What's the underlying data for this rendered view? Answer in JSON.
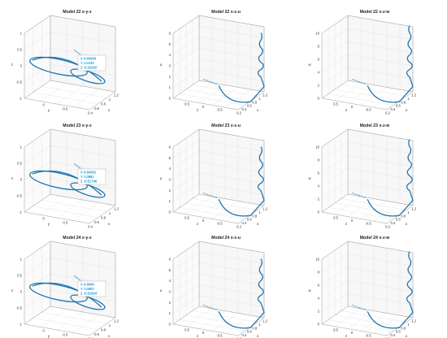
{
  "chart_data": [
    {
      "type": "line3d",
      "title": "Model 22 x-y-z",
      "xlabel": "x",
      "ylabel": "y",
      "zlabel": "z",
      "x_ticks": [
        "0.4",
        "0.6",
        "0.8",
        "1",
        "1.2"
      ],
      "y_ticks": [
        "0",
        "0.5"
      ],
      "z_ticks": [
        "1",
        "0.5",
        "0",
        "-0.5",
        "-1"
      ],
      "datatip": {
        "x": "X 0.60909",
        "y": "Y 1.0132",
        "z": "Z -0.51932"
      },
      "series_color": "#1f77b4"
    },
    {
      "type": "line3d",
      "title": "Model 22 x-z-u",
      "xlabel": "x",
      "ylabel": "z",
      "zlabel": "u",
      "x_ticks": [
        "0.2",
        "0.4",
        "0.6",
        "0.8",
        "1",
        "1.2"
      ],
      "y_ticks": [
        "0.5",
        "0",
        "-0.5"
      ],
      "z_ticks": [
        "6",
        "5",
        "4",
        "3",
        "2",
        "1",
        "0"
      ],
      "series_color": "#1f77b4"
    },
    {
      "type": "line3d",
      "title": "Model 22 x-z-w",
      "xlabel": "x",
      "ylabel": "z",
      "zlabel": "w",
      "x_ticks": [
        "0.2",
        "0.4",
        "0.6",
        "0.8",
        "1",
        "1.2"
      ],
      "y_ticks": [
        "0.5",
        "0",
        "-0.5"
      ],
      "z_ticks": [
        "10",
        "8",
        "6",
        "4",
        "2",
        "0"
      ],
      "series_color": "#1f77b4"
    },
    {
      "type": "line3d",
      "title": "Model 23 x-y-z",
      "xlabel": "x",
      "ylabel": "y",
      "zlabel": "z",
      "x_ticks": [
        "0.4",
        "0.6",
        "0.8",
        "1",
        "1.2"
      ],
      "y_ticks": [
        "0",
        "0.5"
      ],
      "z_ticks": [
        "1",
        "0.5",
        "0",
        "-0.5",
        "-1"
      ],
      "datatip": {
        "x": "X 0.60952",
        "y": "Y 1.0861",
        "z": "Z -0.51796"
      },
      "series_color": "#1f77b4"
    },
    {
      "type": "line3d",
      "title": "Model 23 x-z-u",
      "xlabel": "x",
      "ylabel": "z",
      "zlabel": "u",
      "x_ticks": [
        "0.2",
        "0.4",
        "0.6",
        "0.8",
        "1",
        "1.2"
      ],
      "y_ticks": [
        "0.5",
        "0",
        "-0.5"
      ],
      "z_ticks": [
        "6",
        "5",
        "4",
        "3",
        "2",
        "1",
        "0"
      ],
      "series_color": "#1f77b4"
    },
    {
      "type": "line3d",
      "title": "Model 23 x-z-w",
      "xlabel": "x",
      "ylabel": "z",
      "zlabel": "w",
      "x_ticks": [
        "0.2",
        "0.4",
        "0.6",
        "0.8",
        "1",
        "1.2"
      ],
      "y_ticks": [
        "0.5",
        "0",
        "-0.5"
      ],
      "z_ticks": [
        "10",
        "8",
        "6",
        "4",
        "2",
        "0"
      ],
      "series_color": "#1f77b4"
    },
    {
      "type": "line3d",
      "title": "Model 24 x-y-z",
      "xlabel": "x",
      "ylabel": "y",
      "zlabel": "z",
      "x_ticks": [
        "0.4",
        "0.6",
        "0.8",
        "1",
        "1.2"
      ],
      "y_ticks": [
        "0",
        "0.5"
      ],
      "z_ticks": [
        "1",
        "0.5",
        "0",
        "-0.5",
        "-1"
      ],
      "datatip": {
        "x": "X 0.6094",
        "y": "Y 1.0602",
        "z": "Z -0.51824"
      },
      "series_color": "#1f77b4"
    },
    {
      "type": "line3d",
      "title": "Model 24 x-z-u",
      "xlabel": "x",
      "ylabel": "z",
      "zlabel": "u",
      "x_ticks": [
        "0.2",
        "0.4",
        "0.6",
        "0.8",
        "1",
        "1.2"
      ],
      "y_ticks": [
        "0.5",
        "0",
        "-0.5"
      ],
      "z_ticks": [
        "6",
        "5",
        "4",
        "3",
        "2",
        "1",
        "0"
      ],
      "series_color": "#1f77b4"
    },
    {
      "type": "line3d",
      "title": "Model 24 x-z-w",
      "xlabel": "x",
      "ylabel": "z",
      "zlabel": "w",
      "x_ticks": [
        "0.2",
        "0.4",
        "0.6",
        "0.8",
        "1",
        "1.2"
      ],
      "y_ticks": [
        "0.5",
        "0",
        "-0.5"
      ],
      "z_ticks": [
        "10",
        "8",
        "6",
        "4",
        "2",
        "0"
      ],
      "series_color": "#1f77b4"
    }
  ]
}
